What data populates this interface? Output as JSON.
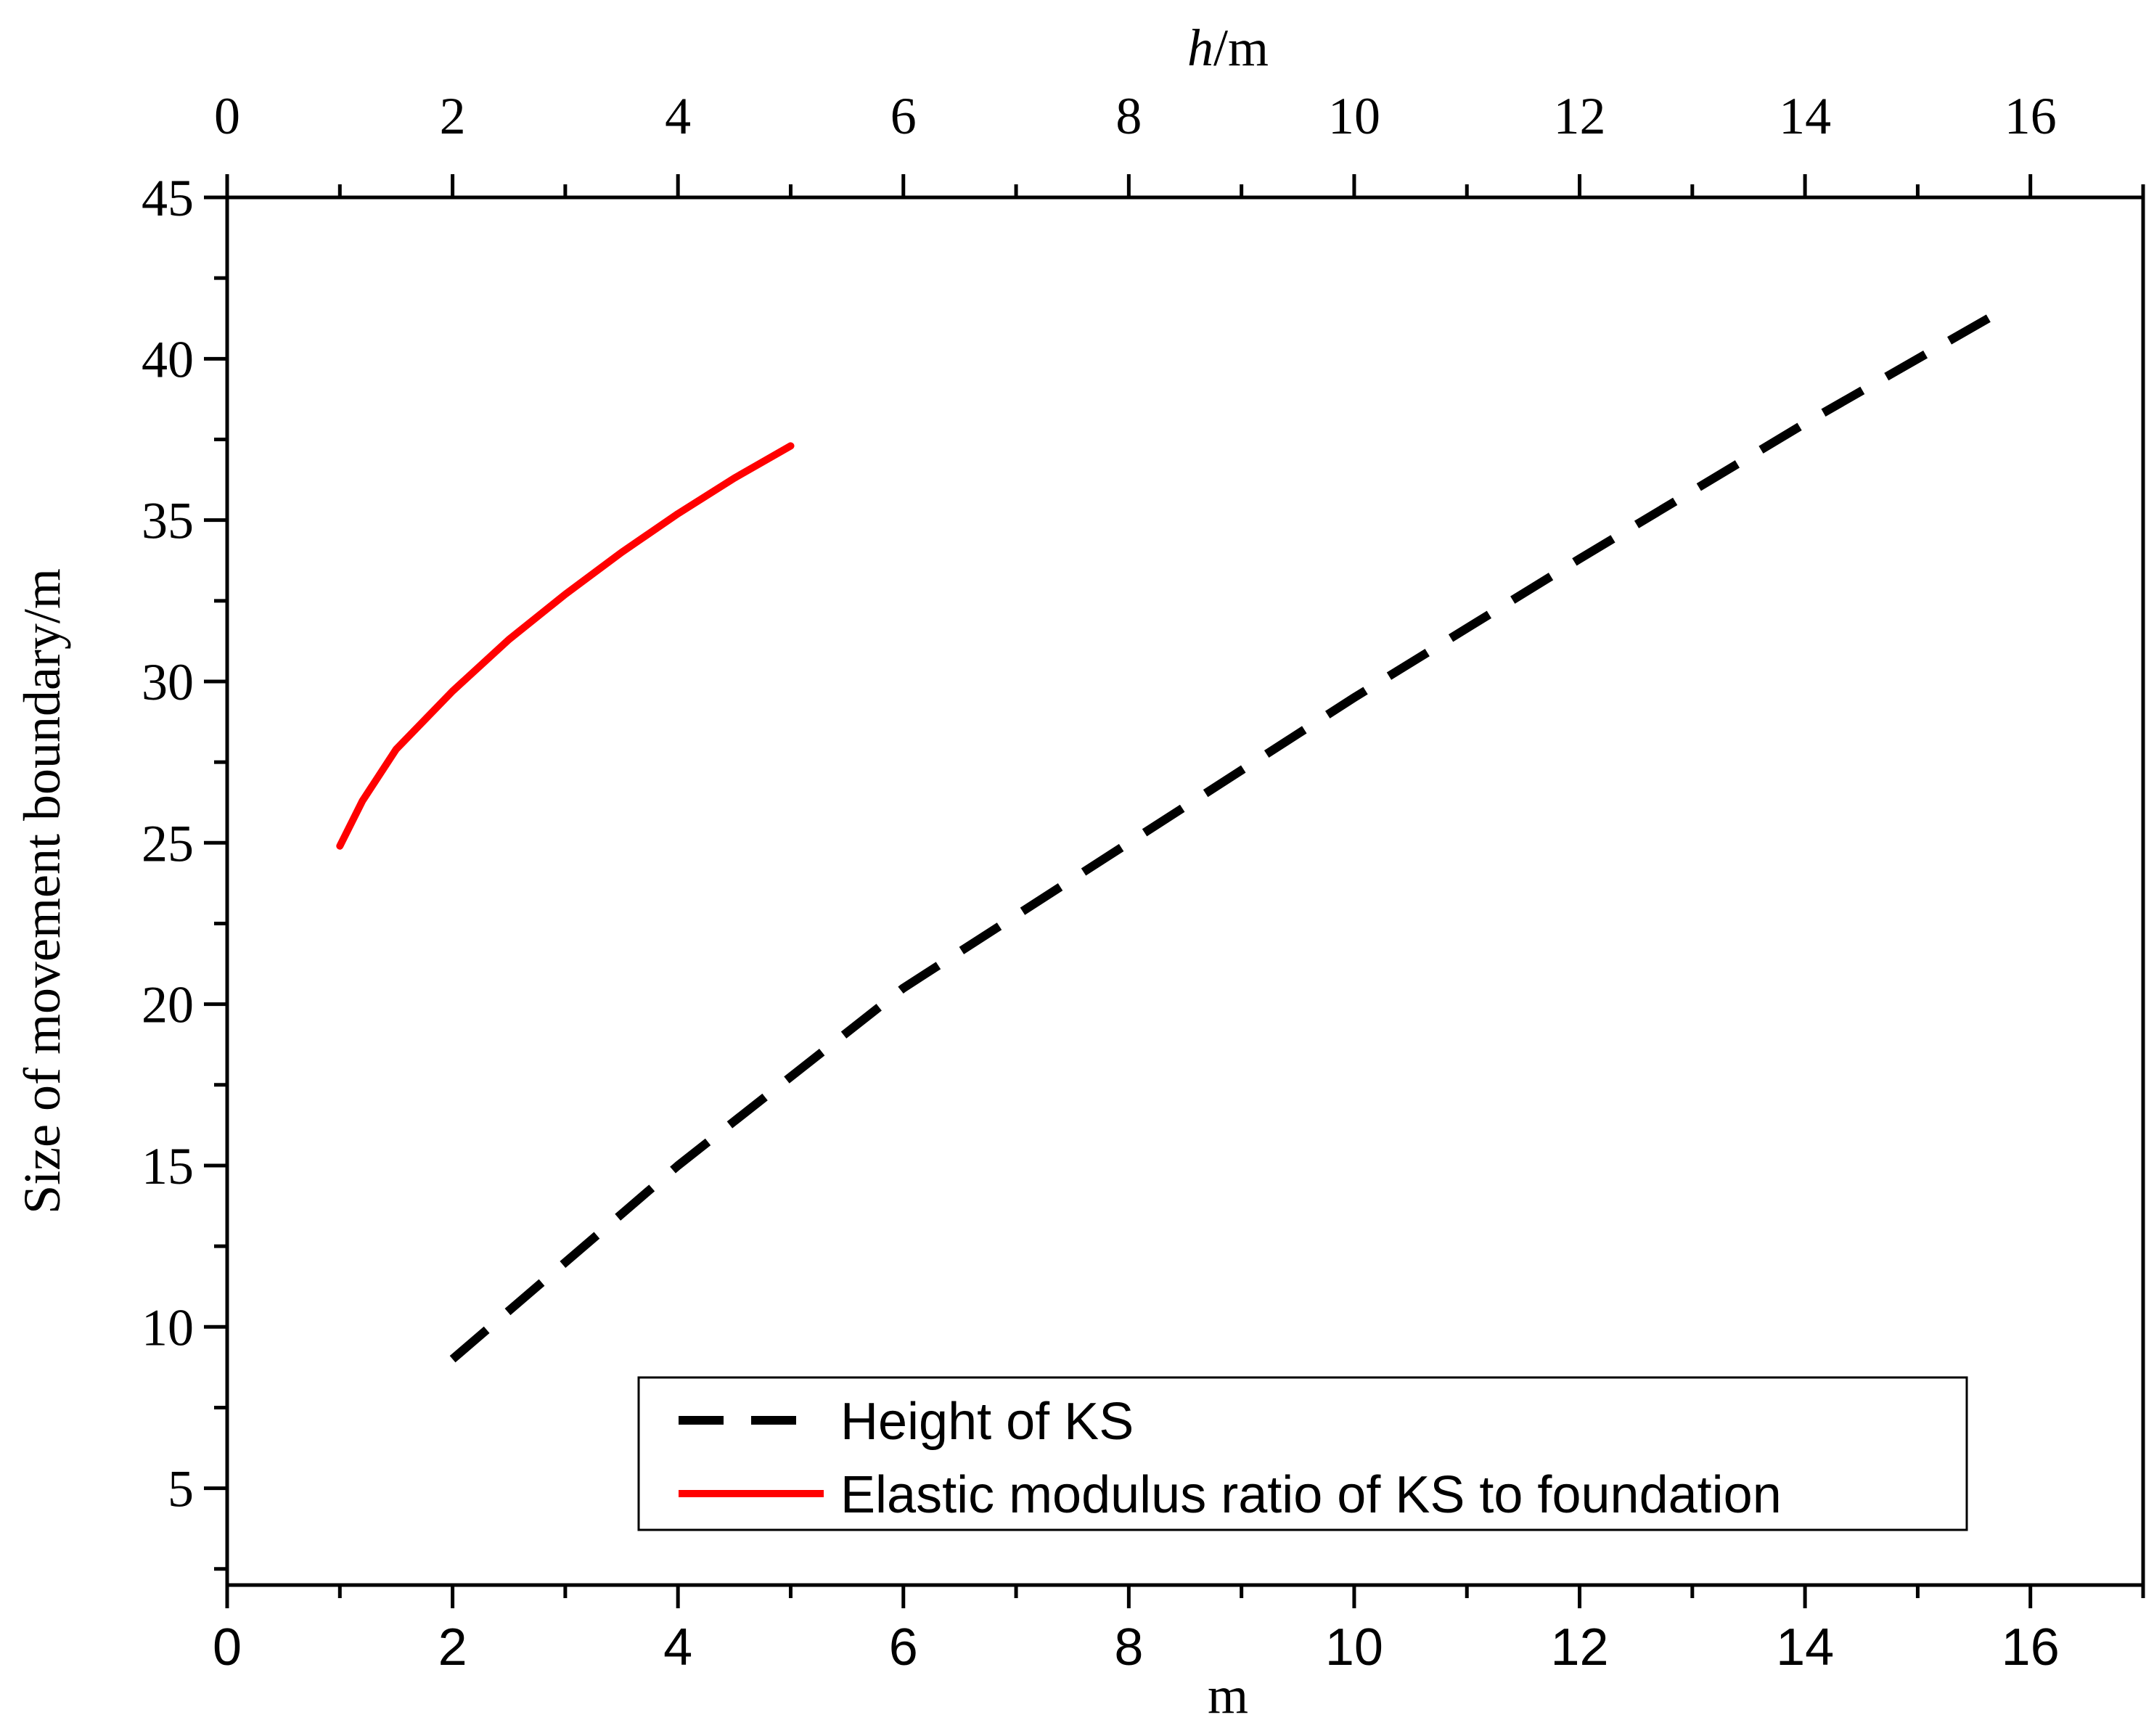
{
  "chart_data": {
    "type": "line",
    "xlabel_bottom": "m",
    "xlabel_top_italic": "h",
    "xlabel_top_rest": "/m",
    "ylabel": "Size of movement boundary/m",
    "xlim": [
      0,
      17
    ],
    "ylim": [
      2,
      45
    ],
    "x_ticks": [
      0,
      2,
      4,
      6,
      8,
      10,
      12,
      14,
      16
    ],
    "y_ticks": [
      5,
      10,
      15,
      20,
      25,
      30,
      35,
      40,
      45
    ],
    "grid": false,
    "legend_position": "bottom-right",
    "series": [
      {
        "name": "Height of KS",
        "style": "dashed",
        "color": "#000000",
        "x": [
          2,
          4,
          6,
          8,
          10,
          12,
          14,
          15.7
        ],
        "y": [
          9.0,
          15.0,
          20.5,
          25.0,
          29.5,
          33.8,
          38.0,
          41.4
        ]
      },
      {
        "name": "Elastic modulus ratio of KS to foundation",
        "style": "solid",
        "color": "#ff0000",
        "x": [
          1.0,
          1.2,
          1.5,
          2.0,
          2.5,
          3.0,
          3.5,
          4.0,
          4.5,
          5.0
        ],
        "y": [
          24.9,
          26.3,
          27.9,
          29.7,
          31.3,
          32.7,
          34.0,
          35.2,
          36.3,
          37.3
        ]
      }
    ]
  }
}
